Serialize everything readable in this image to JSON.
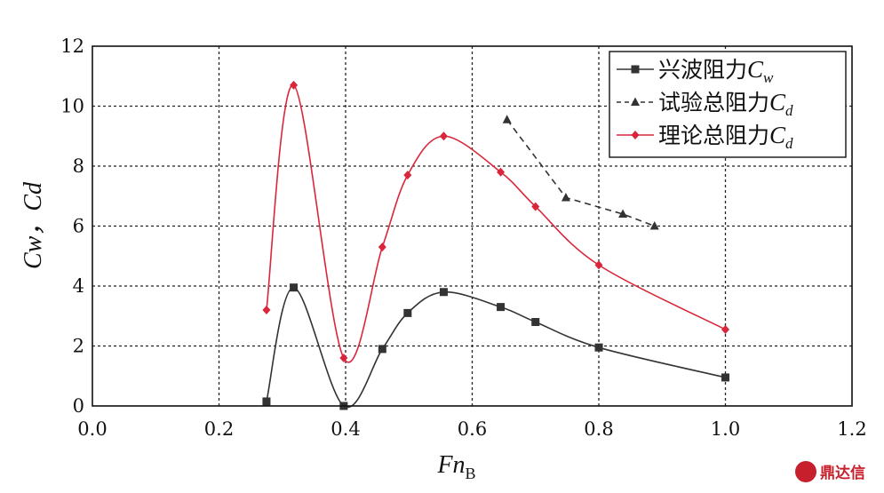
{
  "chart_data": {
    "type": "line",
    "xlabel_main": "Fn",
    "xlabel_sub": "B",
    "ylabel": "Cw，Cd",
    "xlim": [
      0.0,
      1.2
    ],
    "ylim": [
      0,
      12
    ],
    "xticks": [
      "0.0",
      "0.2",
      "0.4",
      "0.6",
      "0.8",
      "1.0",
      "1.2"
    ],
    "yticks": [
      "0",
      "2",
      "4",
      "6",
      "8",
      "10",
      "12"
    ],
    "grid": true,
    "legend_position": "top-right",
    "series": [
      {
        "name": "兴波阻力Cw",
        "legend_prefix": "兴波阻力",
        "legend_symbol": "C",
        "legend_sub": "w",
        "color": "#333333",
        "marker": "square",
        "dash": false,
        "x": [
          0.275,
          0.318,
          0.397,
          0.458,
          0.498,
          0.555,
          0.645,
          0.7,
          0.8,
          1.0
        ],
        "y": [
          0.15,
          3.95,
          0.0,
          1.9,
          3.1,
          3.8,
          3.3,
          2.8,
          1.95,
          0.95
        ]
      },
      {
        "name": "试验总阻力Cd",
        "legend_prefix": "试验总阻力",
        "legend_symbol": "C",
        "legend_sub": "d",
        "color": "#333333",
        "marker": "triangle",
        "dash": true,
        "x": [
          0.655,
          0.748,
          0.838,
          0.888
        ],
        "y": [
          9.55,
          6.95,
          6.4,
          6.0
        ]
      },
      {
        "name": "理论总阻力Cd",
        "legend_prefix": "理论总阻力",
        "legend_symbol": "C",
        "legend_sub": "d",
        "color": "#d9263b",
        "marker": "diamond",
        "dash": false,
        "x": [
          0.275,
          0.318,
          0.397,
          0.458,
          0.498,
          0.555,
          0.645,
          0.7,
          0.8,
          1.0
        ],
        "y": [
          3.2,
          10.7,
          1.6,
          5.3,
          7.7,
          9.0,
          7.8,
          6.65,
          4.7,
          2.55
        ]
      }
    ]
  },
  "watermark": {
    "text": "鼎达信",
    "color": "#c7202c"
  }
}
